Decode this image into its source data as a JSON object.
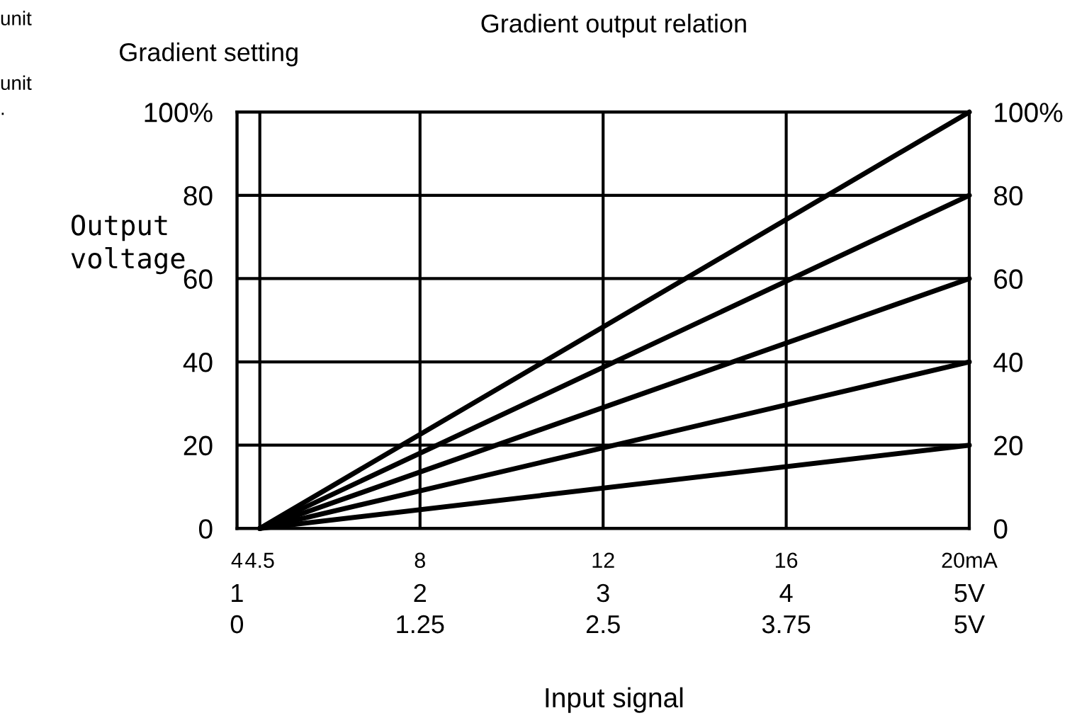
{
  "chart_data": {
    "type": "line",
    "title": "Gradient output relation",
    "xlabel": "Input signal",
    "ylabel": "Output\nvoltage",
    "annotations": [
      "Gradient setting",
      "unit",
      "unit",
      ".",
      "1",
      "2",
      "3",
      "4",
      "5V"
    ],
    "series": [
      {
        "color": "#000000",
        "values": [
          0,
          100
        ]
      },
      {
        "color": "#000000",
        "values": [
          0,
          80
        ]
      },
      {
        "color": "#000000",
        "values": [
          0,
          60
        ]
      },
      {
        "color": "#000000",
        "values": [
          0,
          40
        ]
      },
      {
        "color": "#000000",
        "values": [
          0,
          20
        ]
      }
    ],
    "x": [
      4.5,
      20
    ],
    "xlim": [
      4,
      20
    ],
    "xticks": [
      4,
      4.5,
      8,
      12,
      16,
      {
        "value": 20,
        "label": "20mA"
      }
    ],
    "x2lim": [
      0,
      5
    ],
    "x2ticks": [
      0,
      1.25,
      2.5,
      3.75,
      {
        "value": 5,
        "label": "5V"
      }
    ],
    "ylim": [
      0,
      100
    ],
    "yticks": [
      0,
      20,
      40,
      60,
      80,
      {
        "value": 100,
        "label": "100%"
      }
    ],
    "y2lim": [
      0,
      100
    ],
    "y2ticks": [
      0,
      20,
      40,
      60,
      80,
      {
        "value": 100,
        "label": "100%"
      }
    ],
    "grid": true,
    "marker": "none",
    "line_style": "solid",
    "legend": false
  }
}
